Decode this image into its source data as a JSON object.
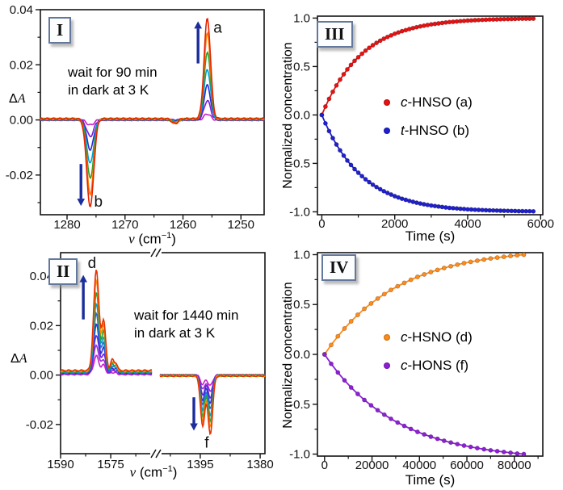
{
  "figure": {
    "background": "#ffffff",
    "panels": [
      {
        "label": "I",
        "note": [
          "wait for 90 min",
          "in dark at 3 K"
        ],
        "ylabel_delta": "Δ",
        "ylabel_A": "A",
        "xlabel_nu": "ν",
        "xlabel_pre": " (cm",
        "xlabel_sup": "−1",
        "xlabel_post": ")"
      },
      {
        "label": "III",
        "ylabel": "Normalized concentration",
        "xlabel": "Time (s)"
      },
      {
        "label": "II",
        "note": [
          "wait for 1440 min",
          "in dark at 3 K"
        ],
        "ylabel_delta": "Δ",
        "ylabel_A": "A",
        "xlabel_nu": "ν",
        "xlabel_pre": " (cm",
        "xlabel_sup": "−1",
        "xlabel_post": ")"
      },
      {
        "label": "IV",
        "ylabel": "Normalized concentration",
        "xlabel": "Time (s)"
      }
    ]
  },
  "chart_data": [
    {
      "panel": "I",
      "type": "line",
      "subtype": "ir-difference-spectra",
      "xlabel": "ν (cm−1)",
      "ylabel": "ΔA",
      "grid": false,
      "ylim": [
        -0.0344,
        0.04
      ],
      "ytick_vals": [
        0.04,
        0.02,
        0,
        -0.02
      ],
      "ytick_labels": [
        "0.04",
        "0.02",
        "0.00",
        "-0.02"
      ],
      "ytick_minor": [
        0.03,
        0.01,
        -0.01,
        -0.03
      ],
      "segments": [
        {
          "xlim": [
            1284.6,
            1246.0
          ],
          "tick_vals": [
            1280,
            1270,
            1260,
            1250
          ],
          "tick_labels": [
            "1280",
            "1270",
            "1260",
            "1250"
          ],
          "tick_minor": [
            1275,
            1265,
            1255
          ],
          "baseline": 0.0004
        }
      ],
      "peaks": [
        {
          "center": 1255.8,
          "sigma": 0.55,
          "amp": 0.0365
        },
        {
          "center": 1276.0,
          "sigma": 0.6,
          "amp": -0.032
        },
        {
          "center": 1261.4,
          "sigma": 0.5,
          "amp": -0.0018
        }
      ],
      "trace_scales": [
        0.06,
        0.19,
        0.34,
        0.5,
        0.67,
        0.85,
        1
      ],
      "trace_colors": [
        "#c81ec8",
        "#7a1ed2",
        "#2a2ad2",
        "#00a0d2",
        "#28a028",
        "#ff7a00",
        "#e62200"
      ],
      "letters": [
        {
          "text": "a",
          "x": 1254.0,
          "y": 0.0335
        },
        {
          "text": "b",
          "x": 1274.6,
          "y": -0.0295
        }
      ],
      "arrows": [
        {
          "x": 1257.4,
          "from": 0.0205,
          "to": 0.0358,
          "dir": "up"
        },
        {
          "x": 1277.6,
          "from": -0.016,
          "to": -0.0312,
          "dir": "down"
        }
      ],
      "arrow_color": "#1b2d9b"
    },
    {
      "panel": "III",
      "type": "scatter",
      "xlabel": "Time (s)",
      "ylabel": "Normalized concentration",
      "grid": false,
      "legend_position": "center-right",
      "xlim": [
        -120,
        6060
      ],
      "ylim": [
        -1.03,
        1.02
      ],
      "xtick_vals": [
        0,
        2000,
        4000,
        6000
      ],
      "xtick_labels": [
        "0",
        "2000",
        "4000",
        "6000"
      ],
      "xtick_minor": [
        1000,
        3000,
        5000
      ],
      "ytick_vals": [
        1,
        0.5,
        0,
        -0.5,
        -1
      ],
      "ytick_labels": [
        "1.0",
        "0.5",
        "0.0",
        "-0.5",
        "-1.0"
      ],
      "ytick_minor": [
        0.75,
        0.25,
        -0.25,
        -0.75
      ],
      "series": [
        {
          "name": "c-HNSO (a)",
          "legend_prefix": "c",
          "legend_rest": "-HNSO (a)",
          "color": "#e81212",
          "x_start": 0,
          "x_step": 100,
          "values": [
            0,
            0.087,
            0.166,
            0.239,
            0.305,
            0.365,
            0.42,
            0.471,
            0.517,
            0.559,
            0.597,
            0.632,
            0.664,
            0.693,
            0.72,
            0.744,
            0.767,
            0.787,
            0.805,
            0.822,
            0.838,
            0.852,
            0.865,
            0.876,
            0.887,
            0.897,
            0.906,
            0.914,
            0.922,
            0.928,
            0.935,
            0.94,
            0.945,
            0.95,
            0.955,
            0.959,
            0.962,
            0.965,
            0.968,
            0.971,
            0.974,
            0.976,
            0.978,
            0.98,
            0.982,
            0.983,
            0.985,
            0.986,
            0.987,
            0.988,
            0.989,
            0.99,
            0.991,
            0.992,
            0.993,
            0.993,
            0.994,
            0.994,
            0.995
          ]
        },
        {
          "name": "t-HNSO (b)",
          "legend_prefix": "t",
          "legend_rest": "-HNSO (b)",
          "color": "#2020d0",
          "x_start": 0,
          "x_step": 100,
          "values": [
            0,
            -0.087,
            -0.166,
            -0.239,
            -0.305,
            -0.365,
            -0.42,
            -0.471,
            -0.517,
            -0.559,
            -0.597,
            -0.632,
            -0.664,
            -0.693,
            -0.72,
            -0.744,
            -0.767,
            -0.787,
            -0.805,
            -0.822,
            -0.838,
            -0.852,
            -0.865,
            -0.876,
            -0.887,
            -0.897,
            -0.906,
            -0.914,
            -0.922,
            -0.928,
            -0.935,
            -0.94,
            -0.945,
            -0.95,
            -0.955,
            -0.959,
            -0.962,
            -0.965,
            -0.968,
            -0.971,
            -0.974,
            -0.976,
            -0.978,
            -0.98,
            -0.982,
            -0.983,
            -0.985,
            -0.986,
            -0.987,
            -0.988,
            -0.989,
            -0.99,
            -0.991,
            -0.992,
            -0.993,
            -0.993,
            -0.994,
            -0.994,
            -0.995
          ]
        }
      ]
    },
    {
      "panel": "II",
      "type": "line",
      "subtype": "ir-difference-spectra",
      "xlabel": "ν (cm−1)",
      "ylabel": "ΔA",
      "grid": false,
      "ylim": [
        -0.0318,
        0.0495
      ],
      "ytick_vals": [
        0.04,
        0.02,
        0,
        -0.02
      ],
      "ytick_labels": [
        "0.04",
        "0.02",
        "0.00",
        "-0.02"
      ],
      "ytick_minor": [
        0.03,
        0.01,
        -0.01
      ],
      "segments": [
        {
          "xlim": [
            1590,
            1562.7
          ],
          "tick_vals": [
            1590,
            1575
          ],
          "tick_labels": [
            "1590",
            "1575"
          ],
          "tick_minor": [
            1582.5,
            1567.5
          ],
          "baseline": 0.0018
        },
        {
          "xlim": [
            1405.1,
            1378.8
          ],
          "tick_vals": [
            1395,
            1380
          ],
          "tick_labels": [
            "1395",
            "1380"
          ],
          "tick_minor": [
            1402.5,
            1387.5
          ],
          "baseline": -0.0003
        }
      ],
      "peaks": [
        {
          "center": 1579.3,
          "sigma": 0.8,
          "amp": 0.041
        },
        {
          "center": 1577.1,
          "sigma": 0.6,
          "amp": 0.02
        },
        {
          "center": 1574.6,
          "sigma": 0.5,
          "amp": 0.0045
        },
        {
          "center": 1573.4,
          "sigma": 0.45,
          "amp": 0.003
        },
        {
          "center": 1394.4,
          "sigma": 0.55,
          "amp": -0.0205
        },
        {
          "center": 1392.5,
          "sigma": 0.6,
          "amp": -0.0235
        }
      ],
      "trace_scales": [
        0.18,
        0.28,
        0.38,
        0.48,
        0.58,
        0.68,
        0.78,
        0.89,
        1
      ],
      "trace_colors": [
        "#c81ec8",
        "#9a28dc",
        "#6a28dc",
        "#3232d2",
        "#2a6ad2",
        "#00a0c8",
        "#28a028",
        "#ff8c00",
        "#e63200"
      ],
      "letters": [
        {
          "text": "d",
          "x": 1580.6,
          "y": 0.0455
        },
        {
          "text": "f",
          "x": 1393.4,
          "y": -0.0272
        }
      ],
      "arrows": [
        {
          "x": 1583.2,
          "from": 0.0225,
          "to": 0.0405,
          "dir": "up"
        },
        {
          "x": 1396.6,
          "from": -0.009,
          "to": -0.0225,
          "dir": "down"
        }
      ],
      "arrow_color": "#1b2d9b"
    },
    {
      "panel": "IV",
      "type": "scatter",
      "xlabel": "Time (s)",
      "ylabel": "Normalized concentration",
      "grid": false,
      "legend_position": "center-right",
      "xlim": [
        -3000,
        92000
      ],
      "ylim": [
        -1.02,
        1.02
      ],
      "xtick_vals": [
        0,
        20000,
        40000,
        60000,
        80000
      ],
      "xtick_labels": [
        "0",
        "20000",
        "40000",
        "60000",
        "80000"
      ],
      "xtick_minor": [
        10000,
        30000,
        50000,
        70000,
        90000
      ],
      "ytick_vals": [
        1,
        0.5,
        0,
        -0.5,
        -1
      ],
      "ytick_labels": [
        "1.0",
        "0.5",
        "0.0",
        "-0.5",
        "-1.0"
      ],
      "ytick_minor": [
        0.75,
        0.25,
        -0.25,
        -0.75
      ],
      "series": [
        {
          "name": "c-HSNO (d)",
          "legend_prefix": "c",
          "legend_rest": "-HSNO (d)",
          "color": "#ff8c1a",
          "x_start": 0,
          "x_step": 2800,
          "values": [
            0,
            0.095,
            0.181,
            0.26,
            0.332,
            0.397,
            0.457,
            0.511,
            0.56,
            0.605,
            0.646,
            0.683,
            0.717,
            0.748,
            0.777,
            0.802,
            0.826,
            0.847,
            0.866,
            0.884,
            0.9,
            0.915,
            0.928,
            0.94,
            0.951,
            0.962,
            0.971,
            0.979,
            0.987,
            0.994,
            1
          ]
        },
        {
          "name": "c-HONS (f)",
          "legend_prefix": "c",
          "legend_rest": "-HONS (f)",
          "color": "#8e1fd6",
          "x_start": 0,
          "x_step": 2800,
          "values": [
            0,
            -0.095,
            -0.181,
            -0.26,
            -0.332,
            -0.397,
            -0.457,
            -0.511,
            -0.56,
            -0.605,
            -0.646,
            -0.683,
            -0.717,
            -0.748,
            -0.777,
            -0.802,
            -0.826,
            -0.847,
            -0.866,
            -0.884,
            -0.9,
            -0.915,
            -0.928,
            -0.94,
            -0.951,
            -0.962,
            -0.971,
            -0.979,
            -0.987,
            -0.994,
            -1
          ]
        }
      ]
    }
  ]
}
